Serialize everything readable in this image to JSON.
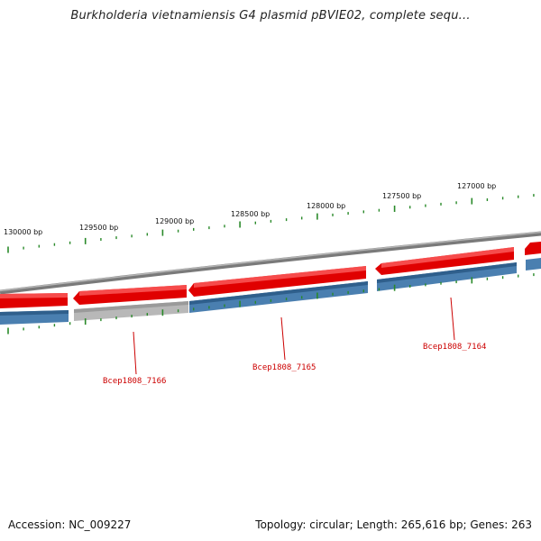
{
  "title": "Burkholderia vietnamiensis G4 plasmid pBVIE02, complete sequ...",
  "footer": {
    "accession": "Accession: NC_009227",
    "summary": "Topology: circular; Length: 265,616 bp; Genes: 263"
  },
  "colors": {
    "forward_strand": "#e00000",
    "reverse_strand": "#4a7fb0",
    "pseudo_gene": "#b8b8b8",
    "backbone": "#777777",
    "ticks": "#2a8a2a",
    "gene_label": "#cc0000"
  },
  "scale": {
    "tick_labels": [
      {
        "bp": 130000,
        "text": "130000 bp"
      },
      {
        "bp": 129500,
        "text": "129500 bp"
      },
      {
        "bp": 129000,
        "text": "129000 bp"
      },
      {
        "bp": 128500,
        "text": "128500 bp"
      },
      {
        "bp": 128000,
        "text": "128000 bp"
      },
      {
        "bp": 127500,
        "text": "127500 bp"
      },
      {
        "bp": 127000,
        "text": "127000 bp"
      }
    ]
  },
  "genes": [
    {
      "label": "Bcep1808_7166"
    },
    {
      "label": "Bcep1808_7165"
    },
    {
      "label": "Bcep1808_7164"
    }
  ]
}
